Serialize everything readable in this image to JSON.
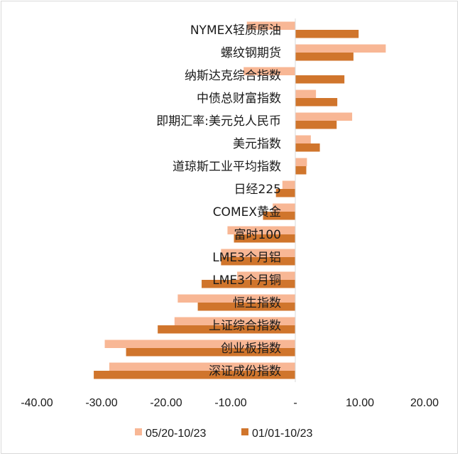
{
  "chart_data": {
    "type": "bar",
    "orientation": "horizontal",
    "categories": [
      "NYMEX轻质原油",
      "螺纹钢期货",
      "纳斯达克综合指数",
      "中债总财富指数",
      "即期汇率:美元兑人民币",
      "美元指数",
      "道琼斯工业平均指数",
      "日经225",
      "COMEX黄金",
      "富时100",
      "LME3个月铝",
      "LME3个月铜",
      "恒生指数",
      "上证综合指数",
      "创业板指数",
      "深证成份指数"
    ],
    "series": [
      {
        "name": "05/20-10/23",
        "color": "#f8b795",
        "values": [
          -7.5,
          14.0,
          -8.0,
          3.2,
          8.8,
          2.4,
          1.8,
          -2.0,
          -3.5,
          -10.5,
          -11.5,
          -9.0,
          -18.2,
          -18.7,
          -29.5,
          -28.8
        ]
      },
      {
        "name": "01/01-10/23",
        "color": "#d0752c",
        "values": [
          9.8,
          9.0,
          7.6,
          6.5,
          6.4,
          3.8,
          1.7,
          -3.0,
          -5.0,
          -9.5,
          -11.5,
          -14.5,
          -15.1,
          -21.3,
          -26.2,
          -31.2
        ]
      }
    ],
    "xlim": [
      -40,
      20
    ],
    "x_ticks": [
      "-40.00",
      "-30.00",
      "-20.00",
      "-10.00",
      "-",
      "10.00",
      "20.00"
    ],
    "x_tick_values": [
      -40,
      -30,
      -20,
      -10,
      0,
      10,
      20
    ],
    "grid": false,
    "legend": "bottom"
  }
}
